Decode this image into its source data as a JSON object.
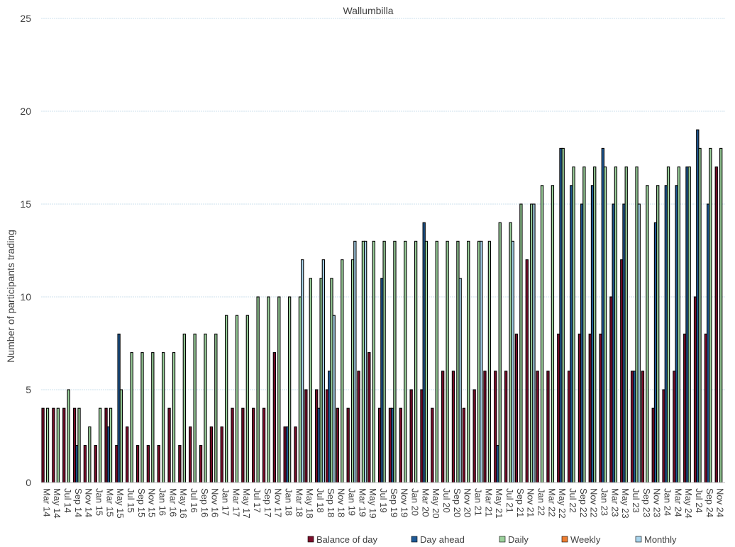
{
  "chart_data": {
    "type": "bar",
    "title": "Wallumbilla",
    "xlabel": "",
    "ylabel": "Number of participants trading",
    "ylim": [
      0,
      25
    ],
    "yticks": [
      0,
      5,
      10,
      15,
      20,
      25
    ],
    "grid": true,
    "legend_position": "bottom-right",
    "categories": [
      "Mar 14",
      "May 14",
      "Jul 14",
      "Sep 14",
      "Nov 14",
      "Jan 15",
      "Mar 15",
      "May 15",
      "Jul 15",
      "Sep 15",
      "Nov 15",
      "Jan 16",
      "Mar 16",
      "May 16",
      "Jul 16",
      "Sep 16",
      "Nov 16",
      "Jan 17",
      "Mar 17",
      "May 17",
      "Jul 17",
      "Sep 17",
      "Nov 17",
      "Jan 18",
      "Mar 18",
      "May 18",
      "Jul 18",
      "Sep 18",
      "Nov 18",
      "Jan 19",
      "Mar 19",
      "May 19",
      "Jul 19",
      "Sep 19",
      "Nov 19",
      "Jan 20",
      "Mar 20",
      "May 20",
      "Jul 20",
      "Sep 20",
      "Nov 20",
      "Jan 21",
      "Mar 21",
      "May 21",
      "Jul 21",
      "Sep 21",
      "Nov 21",
      "Jan 22",
      "Mar 22",
      "May 22",
      "Jul 22",
      "Sep 22",
      "Nov 22",
      "Jan 23",
      "Mar 23",
      "May 23",
      "Jul 23",
      "Sep 23",
      "Nov 23",
      "Jan 24",
      "Mar 24",
      "May 24",
      "Jul 24",
      "Sep 24",
      "Nov 24"
    ],
    "series": [
      {
        "name": "Balance of day",
        "color": "#7b0d2a",
        "values": [
          4,
          4,
          4,
          4,
          2,
          2,
          4,
          2,
          3,
          2,
          2,
          2,
          4,
          2,
          3,
          2,
          3,
          3,
          4,
          4,
          4,
          4,
          7,
          3,
          3,
          5,
          5,
          5,
          4,
          4,
          6,
          7,
          4,
          4,
          4,
          5,
          5,
          4,
          6,
          6,
          4,
          5,
          6,
          6,
          6,
          8,
          12,
          6,
          6,
          8,
          6,
          8,
          8,
          8,
          10,
          12,
          6,
          6,
          4,
          5,
          6,
          8,
          10,
          8,
          17
        ]
      },
      {
        "name": "Day ahead",
        "color": "#1f5a96",
        "values": [
          0,
          0,
          0,
          2,
          0,
          0,
          3,
          8,
          0,
          0,
          0,
          0,
          0,
          0,
          0,
          0,
          0,
          0,
          0,
          0,
          0,
          0,
          0,
          3,
          0,
          0,
          4,
          6,
          0,
          0,
          0,
          0,
          11,
          4,
          0,
          0,
          14,
          0,
          0,
          0,
          0,
          0,
          0,
          2,
          0,
          0,
          0,
          0,
          0,
          18,
          16,
          15,
          16,
          18,
          15,
          15,
          6,
          0,
          14,
          16,
          16,
          17,
          19,
          15,
          0
        ]
      },
      {
        "name": "Daily",
        "color": "#9bd19b",
        "values": [
          4,
          4,
          5,
          4,
          3,
          4,
          4,
          5,
          7,
          7,
          7,
          7,
          7,
          8,
          8,
          8,
          8,
          9,
          9,
          9,
          10,
          10,
          10,
          10,
          10,
          11,
          11,
          11,
          12,
          12,
          13,
          13,
          13,
          13,
          13,
          13,
          13,
          13,
          13,
          13,
          13,
          13,
          13,
          14,
          14,
          15,
          15,
          16,
          16,
          18,
          17,
          17,
          17,
          17,
          17,
          17,
          17,
          16,
          16,
          17,
          17,
          17,
          18,
          18,
          18
        ]
      },
      {
        "name": "Weekly",
        "color": "#ed7d31",
        "values": [
          0,
          0,
          0,
          0,
          0,
          0,
          0,
          0,
          0,
          0,
          0,
          0,
          0,
          0,
          0,
          0,
          0,
          0,
          0,
          0,
          0,
          0,
          0,
          0,
          0,
          0,
          0,
          0,
          0,
          0,
          0,
          0,
          0,
          0,
          0,
          0,
          0,
          0,
          0,
          0,
          0,
          0,
          0,
          0,
          0,
          0,
          0,
          0,
          0,
          0,
          0,
          0,
          0,
          0,
          0,
          0,
          0,
          0,
          0,
          0,
          0,
          0,
          0,
          0,
          0
        ]
      },
      {
        "name": "Monthly",
        "color": "#a8d4ec",
        "values": [
          0,
          0,
          0,
          0,
          0,
          0,
          0,
          0,
          0,
          0,
          0,
          0,
          0,
          0,
          0,
          0,
          0,
          0,
          0,
          0,
          0,
          0,
          0,
          0,
          12,
          0,
          12,
          9,
          0,
          13,
          13,
          0,
          0,
          0,
          0,
          0,
          0,
          0,
          0,
          11,
          0,
          13,
          0,
          0,
          13,
          0,
          15,
          0,
          0,
          0,
          0,
          0,
          0,
          0,
          0,
          0,
          15,
          0,
          0,
          0,
          0,
          0,
          0,
          0,
          0
        ]
      }
    ]
  }
}
